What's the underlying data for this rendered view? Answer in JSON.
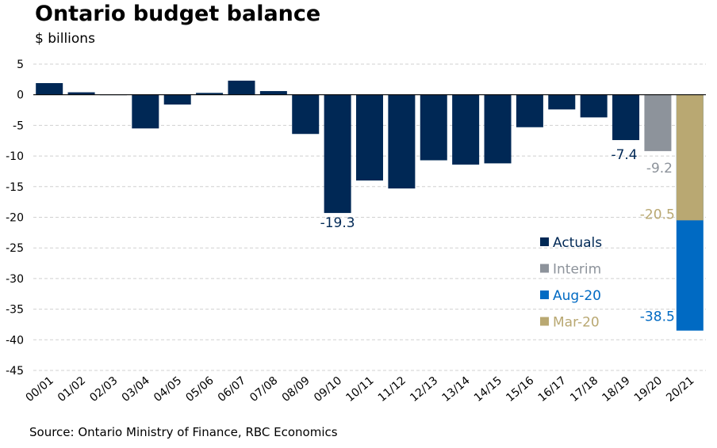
{
  "title": "Ontario budget balance",
  "subtitle": "$ billions",
  "source": "Source: Ontario Ministry of Finance, RBC Economics",
  "colors": {
    "actuals": "#002855",
    "interim": "#8d939b",
    "aug20": "#006ac3",
    "mar20": "#b9a872"
  },
  "chart_data": {
    "type": "bar",
    "categories": [
      "00/01",
      "01/02",
      "02/03",
      "03/04",
      "04/05",
      "05/06",
      "06/07",
      "07/08",
      "08/09",
      "09/10",
      "10/11",
      "11/12",
      "12/13",
      "13/14",
      "14/15",
      "15/16",
      "16/17",
      "17/18",
      "18/19",
      "19/20",
      "20/21"
    ],
    "ylim": [
      -45,
      5
    ],
    "yticks": [
      5,
      0,
      -5,
      -10,
      -15,
      -20,
      -25,
      -30,
      -35,
      -40,
      -45
    ],
    "grid": true,
    "legend_position": "bottom-right",
    "legend": [
      {
        "name": "Actuals",
        "color_key": "actuals"
      },
      {
        "name": "Interim",
        "color_key": "interim"
      },
      {
        "name": "Aug-20",
        "color_key": "aug20"
      },
      {
        "name": "Mar-20",
        "color_key": "mar20"
      }
    ],
    "bars": [
      {
        "category": "00/01",
        "value": 1.9,
        "series": "Actuals"
      },
      {
        "category": "01/02",
        "value": 0.4,
        "series": "Actuals"
      },
      {
        "category": "02/03",
        "value": 0.0,
        "series": "Actuals"
      },
      {
        "category": "03/04",
        "value": -5.5,
        "series": "Actuals"
      },
      {
        "category": "04/05",
        "value": -1.6,
        "series": "Actuals"
      },
      {
        "category": "05/06",
        "value": 0.3,
        "series": "Actuals"
      },
      {
        "category": "06/07",
        "value": 2.3,
        "series": "Actuals"
      },
      {
        "category": "07/08",
        "value": 0.6,
        "series": "Actuals"
      },
      {
        "category": "08/09",
        "value": -6.4,
        "series": "Actuals"
      },
      {
        "category": "09/10",
        "value": -19.3,
        "series": "Actuals",
        "label": "-19.3"
      },
      {
        "category": "10/11",
        "value": -14.0,
        "series": "Actuals"
      },
      {
        "category": "11/12",
        "value": -15.3,
        "series": "Actuals"
      },
      {
        "category": "12/13",
        "value": -10.7,
        "series": "Actuals"
      },
      {
        "category": "13/14",
        "value": -11.4,
        "series": "Actuals"
      },
      {
        "category": "14/15",
        "value": -11.2,
        "series": "Actuals"
      },
      {
        "category": "15/16",
        "value": -5.3,
        "series": "Actuals"
      },
      {
        "category": "16/17",
        "value": -2.4,
        "series": "Actuals"
      },
      {
        "category": "17/18",
        "value": -3.7,
        "series": "Actuals"
      },
      {
        "category": "18/19",
        "value": -7.4,
        "series": "Actuals",
        "label": "-7.4"
      },
      {
        "category": "19/20",
        "value": -9.2,
        "series": "Interim",
        "label": "-9.2"
      },
      {
        "category": "20/21",
        "value": -20.5,
        "series": "Mar-20",
        "label": "-20.5"
      },
      {
        "category": "20/21",
        "value": -38.5,
        "series": "Aug-20",
        "label": "-38.5"
      }
    ]
  }
}
